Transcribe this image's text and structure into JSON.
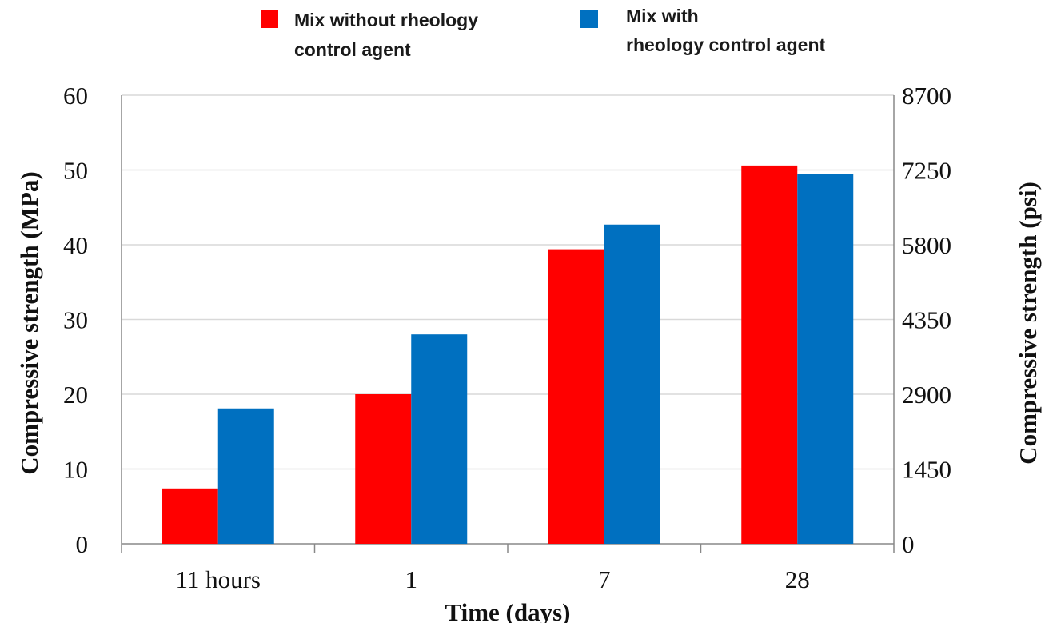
{
  "chart_data": {
    "type": "bar",
    "categories": [
      "11 hours",
      "1",
      "7",
      "28"
    ],
    "series": [
      {
        "name": "Mix without rheology control agent",
        "values": [
          7.4,
          20.0,
          39.4,
          50.6
        ]
      },
      {
        "name": "Mix with rheology control agent",
        "values": [
          18.1,
          28.0,
          42.7,
          49.5
        ]
      }
    ],
    "colors": [
      "#ff0000",
      "#0070c0"
    ],
    "legend": {
      "placement": "top",
      "entries": [
        {
          "line1": "Mix without rheology",
          "line2": "control agent"
        },
        {
          "line1": "Mix with",
          "line2": "rheology control agent"
        }
      ]
    },
    "xlabel": "Time (days)",
    "ylabel": "Compressive strength (MPa)",
    "y2label": "Compressive strength (psi)",
    "ylim": [
      0,
      60
    ],
    "yticks": [
      "0",
      "10",
      "20",
      "30",
      "40",
      "50",
      "60"
    ],
    "y2ticks": [
      "0",
      "1450",
      "2900",
      "4350",
      "5800",
      "7250",
      "8700"
    ],
    "grid": true
  }
}
